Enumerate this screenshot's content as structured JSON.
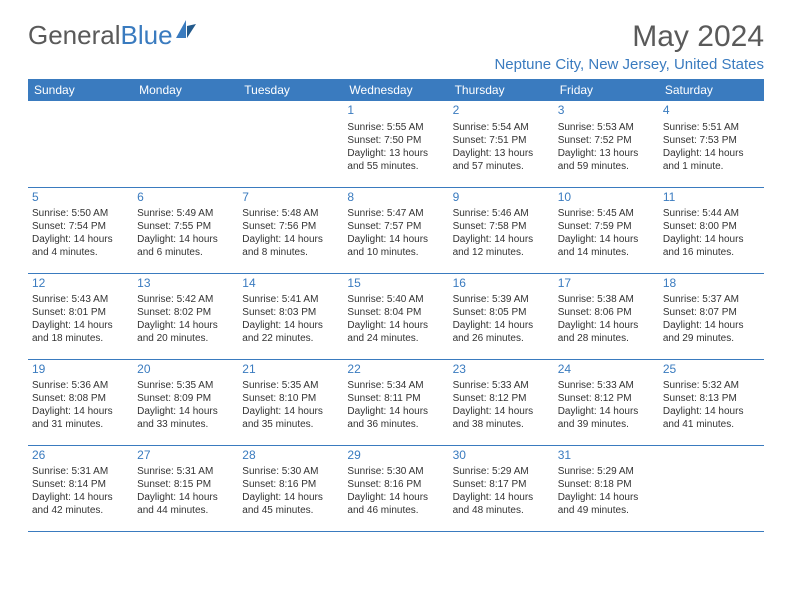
{
  "logo": {
    "text1": "General",
    "text2": "Blue"
  },
  "title": "May 2024",
  "location": "Neptune City, New Jersey, United States",
  "colors": {
    "header_bg": "#3a7bbf",
    "header_text": "#ffffff",
    "accent": "#3a7bbf",
    "body_text": "#333333",
    "logo_gray": "#5a5a5a"
  },
  "day_headers": [
    "Sunday",
    "Monday",
    "Tuesday",
    "Wednesday",
    "Thursday",
    "Friday",
    "Saturday"
  ],
  "weeks": [
    [
      null,
      null,
      null,
      {
        "n": "1",
        "sr": "5:55 AM",
        "ss": "7:50 PM",
        "dl": "13 hours and 55 minutes."
      },
      {
        "n": "2",
        "sr": "5:54 AM",
        "ss": "7:51 PM",
        "dl": "13 hours and 57 minutes."
      },
      {
        "n": "3",
        "sr": "5:53 AM",
        "ss": "7:52 PM",
        "dl": "13 hours and 59 minutes."
      },
      {
        "n": "4",
        "sr": "5:51 AM",
        "ss": "7:53 PM",
        "dl": "14 hours and 1 minute."
      }
    ],
    [
      {
        "n": "5",
        "sr": "5:50 AM",
        "ss": "7:54 PM",
        "dl": "14 hours and 4 minutes."
      },
      {
        "n": "6",
        "sr": "5:49 AM",
        "ss": "7:55 PM",
        "dl": "14 hours and 6 minutes."
      },
      {
        "n": "7",
        "sr": "5:48 AM",
        "ss": "7:56 PM",
        "dl": "14 hours and 8 minutes."
      },
      {
        "n": "8",
        "sr": "5:47 AM",
        "ss": "7:57 PM",
        "dl": "14 hours and 10 minutes."
      },
      {
        "n": "9",
        "sr": "5:46 AM",
        "ss": "7:58 PM",
        "dl": "14 hours and 12 minutes."
      },
      {
        "n": "10",
        "sr": "5:45 AM",
        "ss": "7:59 PM",
        "dl": "14 hours and 14 minutes."
      },
      {
        "n": "11",
        "sr": "5:44 AM",
        "ss": "8:00 PM",
        "dl": "14 hours and 16 minutes."
      }
    ],
    [
      {
        "n": "12",
        "sr": "5:43 AM",
        "ss": "8:01 PM",
        "dl": "14 hours and 18 minutes."
      },
      {
        "n": "13",
        "sr": "5:42 AM",
        "ss": "8:02 PM",
        "dl": "14 hours and 20 minutes."
      },
      {
        "n": "14",
        "sr": "5:41 AM",
        "ss": "8:03 PM",
        "dl": "14 hours and 22 minutes."
      },
      {
        "n": "15",
        "sr": "5:40 AM",
        "ss": "8:04 PM",
        "dl": "14 hours and 24 minutes."
      },
      {
        "n": "16",
        "sr": "5:39 AM",
        "ss": "8:05 PM",
        "dl": "14 hours and 26 minutes."
      },
      {
        "n": "17",
        "sr": "5:38 AM",
        "ss": "8:06 PM",
        "dl": "14 hours and 28 minutes."
      },
      {
        "n": "18",
        "sr": "5:37 AM",
        "ss": "8:07 PM",
        "dl": "14 hours and 29 minutes."
      }
    ],
    [
      {
        "n": "19",
        "sr": "5:36 AM",
        "ss": "8:08 PM",
        "dl": "14 hours and 31 minutes."
      },
      {
        "n": "20",
        "sr": "5:35 AM",
        "ss": "8:09 PM",
        "dl": "14 hours and 33 minutes."
      },
      {
        "n": "21",
        "sr": "5:35 AM",
        "ss": "8:10 PM",
        "dl": "14 hours and 35 minutes."
      },
      {
        "n": "22",
        "sr": "5:34 AM",
        "ss": "8:11 PM",
        "dl": "14 hours and 36 minutes."
      },
      {
        "n": "23",
        "sr": "5:33 AM",
        "ss": "8:12 PM",
        "dl": "14 hours and 38 minutes."
      },
      {
        "n": "24",
        "sr": "5:33 AM",
        "ss": "8:12 PM",
        "dl": "14 hours and 39 minutes."
      },
      {
        "n": "25",
        "sr": "5:32 AM",
        "ss": "8:13 PM",
        "dl": "14 hours and 41 minutes."
      }
    ],
    [
      {
        "n": "26",
        "sr": "5:31 AM",
        "ss": "8:14 PM",
        "dl": "14 hours and 42 minutes."
      },
      {
        "n": "27",
        "sr": "5:31 AM",
        "ss": "8:15 PM",
        "dl": "14 hours and 44 minutes."
      },
      {
        "n": "28",
        "sr": "5:30 AM",
        "ss": "8:16 PM",
        "dl": "14 hours and 45 minutes."
      },
      {
        "n": "29",
        "sr": "5:30 AM",
        "ss": "8:16 PM",
        "dl": "14 hours and 46 minutes."
      },
      {
        "n": "30",
        "sr": "5:29 AM",
        "ss": "8:17 PM",
        "dl": "14 hours and 48 minutes."
      },
      {
        "n": "31",
        "sr": "5:29 AM",
        "ss": "8:18 PM",
        "dl": "14 hours and 49 minutes."
      },
      null
    ]
  ],
  "labels": {
    "sunrise": "Sunrise: ",
    "sunset": "Sunset: ",
    "daylight": "Daylight: "
  }
}
